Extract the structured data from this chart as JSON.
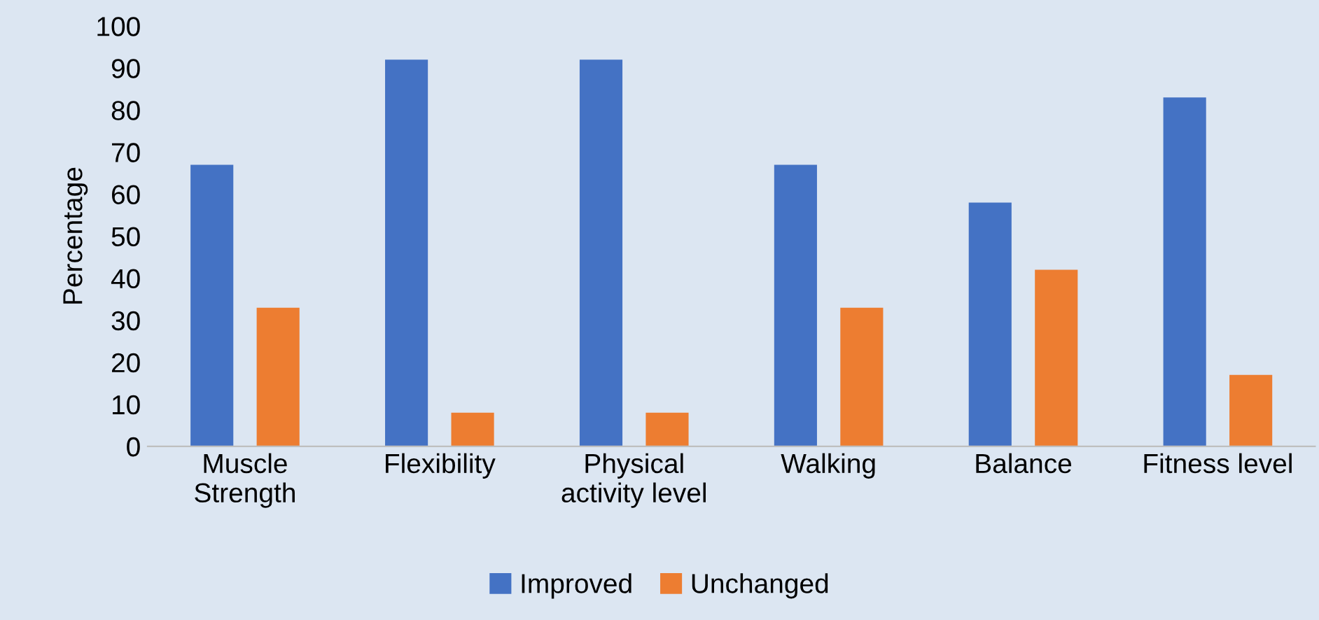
{
  "chart_data": {
    "type": "bar",
    "ylabel": "Percentage",
    "categories": [
      "Muscle\nStrength",
      "Flexibility",
      "Physical\nactivity level",
      "Walking",
      "Balance",
      "Fitness level"
    ],
    "series": [
      {
        "name": "Improved",
        "color": "#4472c4",
        "values": [
          67,
          92,
          92,
          67,
          58,
          83
        ]
      },
      {
        "name": "Unchanged",
        "color": "#ed7d31",
        "values": [
          33,
          8,
          8,
          33,
          42,
          17
        ]
      }
    ],
    "ylim": [
      0,
      100
    ],
    "yticks": [
      0,
      10,
      20,
      30,
      40,
      50,
      60,
      70,
      80,
      90,
      100
    ],
    "grid": false,
    "legend": "bottom"
  }
}
